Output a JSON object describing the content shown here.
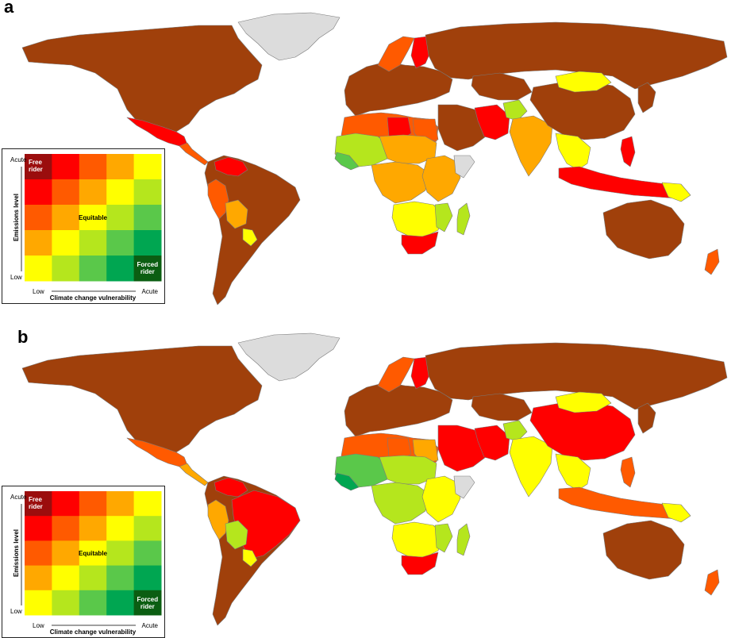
{
  "panels": [
    {
      "label": "a"
    },
    {
      "label": "b"
    }
  ],
  "legend": {
    "y_axis_title": "Emissions level",
    "x_axis_title": "Climate change vulnerability",
    "y_high": "Acute",
    "y_low": "Low",
    "x_low": "Low",
    "x_high": "Acute",
    "free_rider_line1": "Free",
    "free_rider_line2": "rider",
    "equitable": "Equitable",
    "forced_rider_line1": "Forced",
    "forced_rider_line2": "rider",
    "grid_colors": [
      [
        "#9b0d0d",
        "#ff0000",
        "#ff5a00",
        "#ffa800",
        "#ffff00"
      ],
      [
        "#ff0000",
        "#ff5a00",
        "#ffa800",
        "#ffff00",
        "#b5e61d"
      ],
      [
        "#ff5a00",
        "#ffa800",
        "#ffff00",
        "#b5e61d",
        "#5ac84a"
      ],
      [
        "#ffa800",
        "#ffff00",
        "#b5e61d",
        "#5ac84a",
        "#00a651"
      ],
      [
        "#ffff00",
        "#b5e61d",
        "#5ac84a",
        "#00a651",
        "#0b5e12"
      ]
    ]
  },
  "map_colors": {
    "high_emitter": "#a0400b",
    "ocean": "#ffffff",
    "greenland": "#dcdcdc",
    "border": "#7a7a7a"
  },
  "panel_a_regions": {
    "north_america": "#a0400b",
    "mexico": "#ff0000",
    "central_america": "#ff5a00",
    "south_america": "#a0400b",
    "venezuela": "#ff0000",
    "peru": "#ff5a00",
    "bolivia": "#ffa800",
    "paraguay": "#ffff00",
    "europe": "#a0400b",
    "scandinavia": "#ff5a00",
    "finland": "#ff0000",
    "russia": "#a0400b",
    "north_africa": "#ff5a00",
    "libya": "#ff0000",
    "egypt": "#ff5a00",
    "west_africa": "#b5e61d",
    "west_africa_coast": "#5ac84a",
    "sahel": "#ffa800",
    "central_africa": "#ffa800",
    "east_africa": "#ffa800",
    "horn": "#dcdcdc",
    "southern_africa_mid": "#ffff00",
    "mozambique": "#b5e61d",
    "south_africa": "#ff0000",
    "madagascar": "#b5e61d",
    "middle_east": "#a0400b",
    "iran": "#ff0000",
    "afghanistan": "#b5e61d",
    "central_asia": "#a0400b",
    "india": "#ffa800",
    "china": "#a0400b",
    "mongolia": "#ffff00",
    "se_asia_mainland": "#ffff00",
    "indonesia": "#ff0000",
    "philippines": "#ff0000",
    "png": "#ffff00",
    "japan": "#a0400b",
    "australia": "#a0400b",
    "new_zealand": "#ff5a00"
  },
  "panel_b_regions": {
    "north_america": "#a0400b",
    "mexico": "#ff5a00",
    "central_america": "#ffa800",
    "south_america": "#a0400b",
    "venezuela": "#ff0000",
    "peru": "#ffa800",
    "brazil": "#ff0000",
    "bolivia": "#b5e61d",
    "paraguay": "#ffff00",
    "europe": "#a0400b",
    "scandinavia": "#ff5a00",
    "finland": "#ff0000",
    "russia": "#a0400b",
    "north_africa": "#ff5a00",
    "libya": "#ff5a00",
    "egypt": "#ffa800",
    "west_africa": "#5ac84a",
    "west_africa_coast": "#00a651",
    "sahel": "#b5e61d",
    "central_africa": "#b5e61d",
    "east_africa": "#ffff00",
    "horn": "#dcdcdc",
    "southern_africa_mid": "#ffff00",
    "mozambique": "#b5e61d",
    "south_africa": "#ff0000",
    "madagascar": "#b5e61d",
    "middle_east": "#ff0000",
    "iran": "#ff0000",
    "afghanistan": "#b5e61d",
    "central_asia": "#a0400b",
    "india": "#ffff00",
    "china": "#ff0000",
    "mongolia": "#ffff00",
    "se_asia_mainland": "#ffff00",
    "indonesia": "#ff5a00",
    "philippines": "#ff5a00",
    "png": "#ffff00",
    "japan": "#a0400b",
    "australia": "#a0400b",
    "new_zealand": "#ff5a00"
  }
}
